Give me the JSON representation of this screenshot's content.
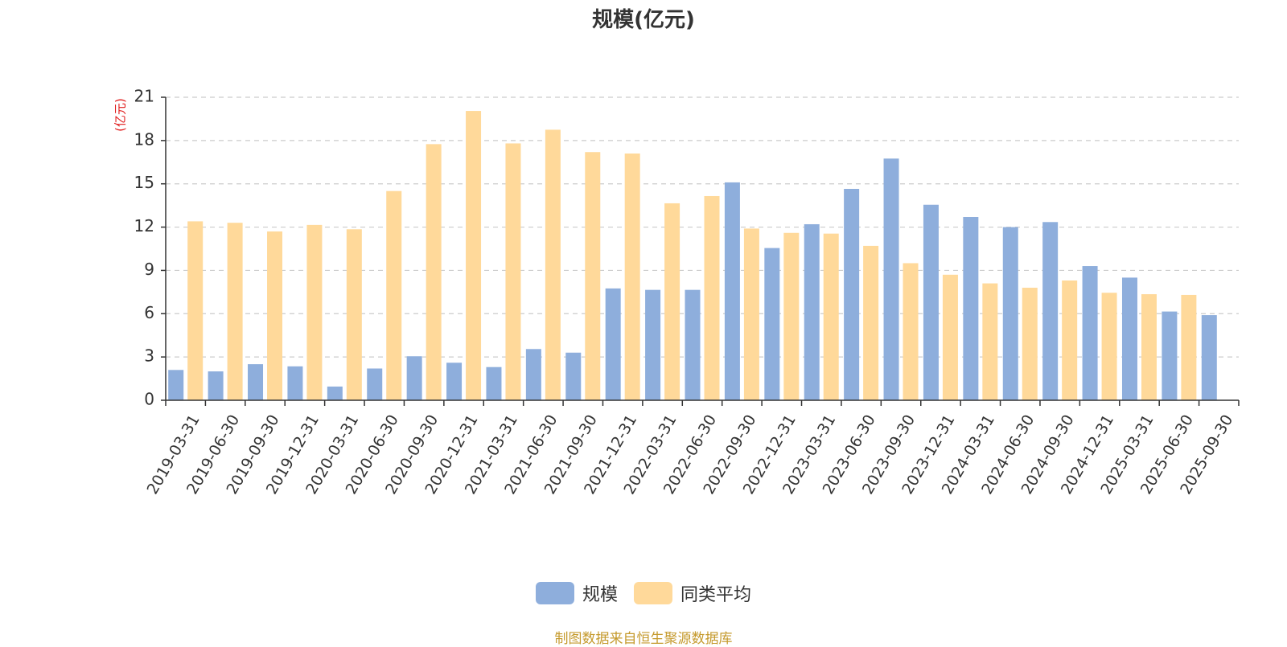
{
  "chart_data": {
    "type": "bar",
    "title": "规模(亿元)",
    "ylabel": "(亿元)",
    "xlabel": "",
    "ylim": [
      0,
      21
    ],
    "yticks": [
      0,
      3,
      6,
      9,
      12,
      15,
      18,
      21
    ],
    "grid": true,
    "legend_position": "bottom-center",
    "categories": [
      "2019-03-31",
      "2019-06-30",
      "2019-09-30",
      "2019-12-31",
      "2020-03-31",
      "2020-06-30",
      "2020-09-30",
      "2020-12-31",
      "2021-03-31",
      "2021-06-30",
      "2021-09-30",
      "2021-12-31",
      "2022-03-31",
      "2022-06-30",
      "2022-09-30",
      "2022-12-31",
      "2023-03-31",
      "2023-06-30",
      "2023-09-30",
      "2023-12-31",
      "2024-03-31",
      "2024-06-30",
      "2024-09-30",
      "2024-12-31",
      "2025-03-31",
      "2025-06-30",
      "2025-09-30"
    ],
    "series": [
      {
        "name": "规模",
        "color": "#8eaedc",
        "values": [
          2.1,
          2.0,
          2.5,
          2.35,
          0.95,
          2.2,
          3.05,
          2.6,
          2.3,
          3.55,
          3.3,
          7.75,
          7.65,
          7.65,
          15.1,
          10.55,
          12.2,
          14.65,
          16.75,
          13.55,
          12.7,
          12.0,
          12.35,
          9.3,
          8.5,
          6.15,
          5.9
        ]
      },
      {
        "name": "同类平均",
        "color": "#ffd99a",
        "values": [
          12.4,
          12.3,
          11.7,
          12.15,
          11.85,
          14.5,
          17.75,
          20.05,
          17.8,
          18.75,
          17.2,
          17.1,
          13.65,
          14.15,
          11.9,
          11.6,
          11.55,
          10.7,
          9.5,
          8.7,
          8.1,
          7.8,
          8.3,
          7.45,
          7.35,
          7.3,
          null
        ]
      }
    ]
  },
  "legend": {
    "items": [
      "规模",
      "同类平均"
    ]
  },
  "source_note": "制图数据来自恒生聚源数据库"
}
